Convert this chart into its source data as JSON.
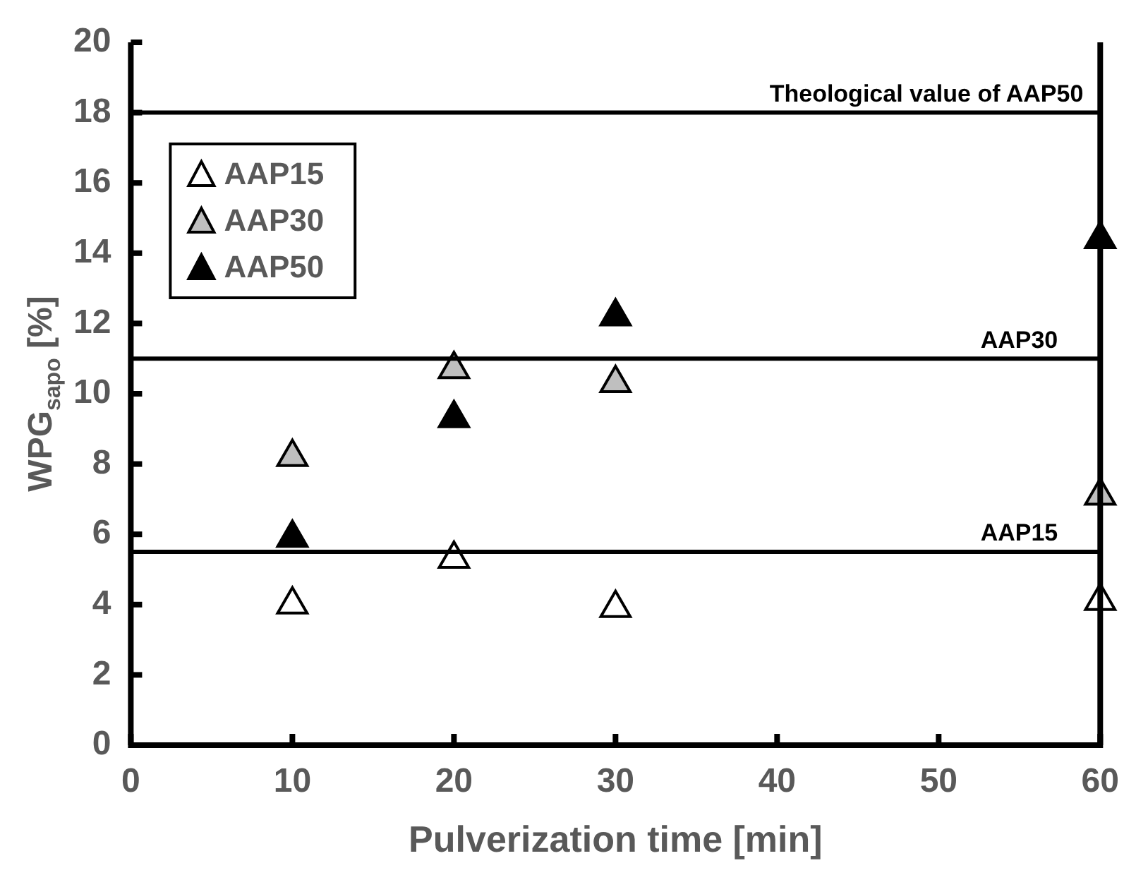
{
  "chart_data": {
    "type": "scatter",
    "xlabel": "Pulverization time [min]",
    "ylabel": "WPG$_{sapo}$ [%]",
    "xlim": [
      0,
      60
    ],
    "xticks": [
      0,
      10,
      20,
      30,
      40,
      50,
      60
    ],
    "ylim": [
      0,
      20
    ],
    "yticks": [
      0,
      2,
      4,
      6,
      8,
      10,
      12,
      14,
      16,
      18,
      20
    ],
    "marker": "triangle",
    "legend": "top left",
    "series": [
      {
        "name": "AAP15",
        "color": "#ffffff",
        "x": [
          10,
          20,
          30,
          60
        ],
        "values": [
          4.0,
          5.3,
          3.9,
          4.1
        ]
      },
      {
        "name": "AAP30",
        "color": "#bfbfbf",
        "x": [
          10,
          20,
          30,
          60
        ],
        "values": [
          8.2,
          10.7,
          10.3,
          7.1
        ]
      },
      {
        "name": "AAP50",
        "color": "#000000",
        "x": [
          10,
          20,
          30,
          60
        ],
        "values": [
          5.9,
          9.3,
          12.2,
          14.4
        ]
      }
    ],
    "ref_lines": [
      {
        "axis": "y",
        "value": 18,
        "label": "Theological value of AAP50",
        "color": "#000000"
      },
      {
        "axis": "y",
        "value": 11,
        "label": "AAP30",
        "color": "#000000"
      },
      {
        "axis": "y",
        "value": 5.5,
        "label": "AAP15",
        "color": "#000000"
      }
    ]
  }
}
